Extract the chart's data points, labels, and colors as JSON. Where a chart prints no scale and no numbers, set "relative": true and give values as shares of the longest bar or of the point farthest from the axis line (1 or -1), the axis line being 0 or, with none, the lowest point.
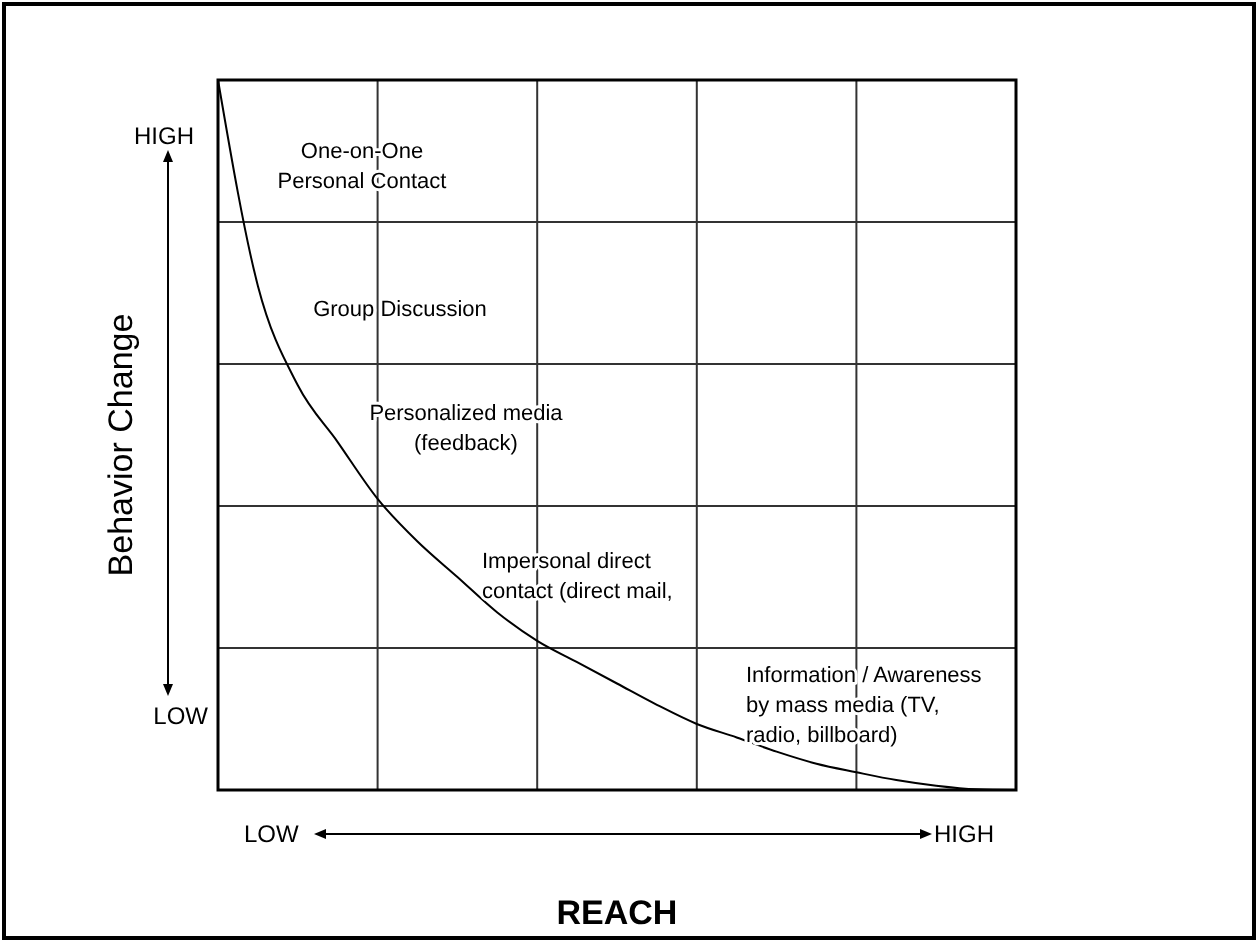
{
  "chart_data": {
    "type": "line",
    "relative": true,
    "xlabel": "REACH",
    "ylabel": "Behavior Change",
    "grid": true,
    "categories": [
      null,
      null,
      null,
      null,
      null,
      null,
      null,
      null,
      null,
      null,
      null,
      null,
      null,
      null,
      null,
      null,
      null,
      null,
      null,
      null,
      null
    ],
    "series": [
      {
        "color": "#000000",
        "values": [
          1.0,
          0.71,
          0.57,
          0.49,
          0.41,
          0.35,
          0.3,
          0.25,
          0.21,
          0.18,
          0.15,
          0.12,
          0.093,
          0.074,
          0.054,
          0.037,
          0.025,
          0.014,
          0.006,
          0.001,
          0
        ]
      }
    ],
    "annotations": [
      "HIGH",
      "LOW",
      "LOW",
      "HIGH",
      "One-on-One\nPersonal Contact",
      "Group Discussion",
      "Personalized media\n(feedback)",
      "Impersonal direct\ncontact (direct mail,",
      "Information / Awareness\nby mass media (TV,\nradio, billboard)"
    ]
  }
}
